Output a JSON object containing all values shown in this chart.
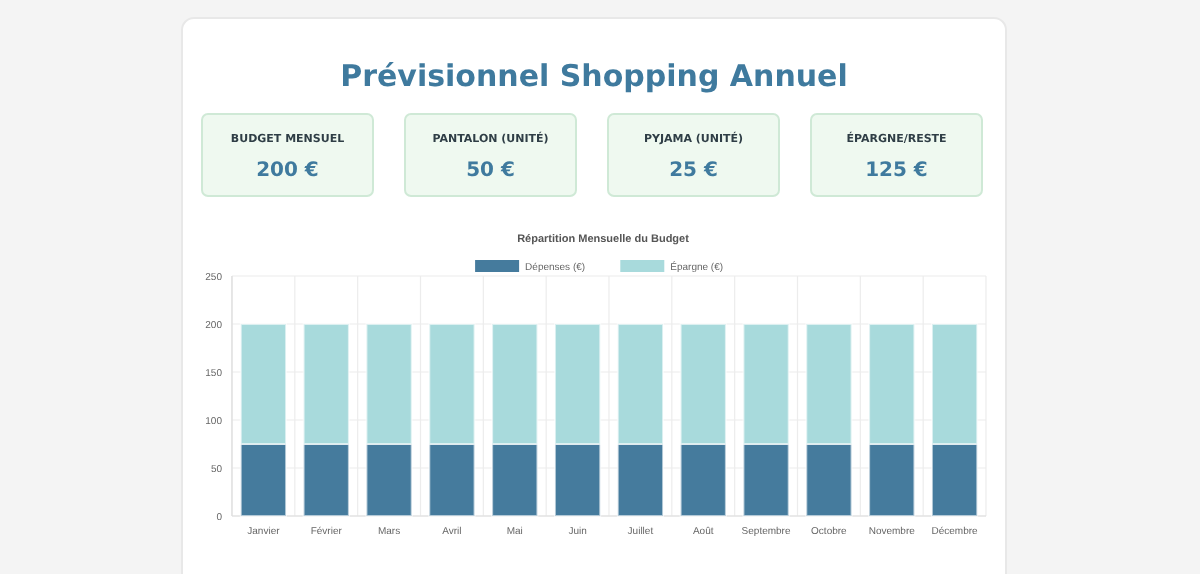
{
  "chart_data": [
    {
      "type": "other",
      "title": "Prévisionnel Shopping Annuel",
      "annotations": [
        "BUDGET MENSUEL",
        "200 €",
        "PANTALON (UNITÉ)",
        "50 €",
        "PYJAMA (UNITÉ)",
        "25 €",
        "ÉPARGNE/RESTE",
        "125 €"
      ]
    },
    {
      "type": "bar",
      "title": "Répartition Mensuelle du Budget",
      "categories": [
        "Janvier",
        "Février",
        "Mars",
        "Avril",
        "Mai",
        "Juin",
        "Juillet",
        "Août",
        "Septembre",
        "Octobre",
        "Novembre",
        "Décembre"
      ],
      "stacked": true,
      "series": [
        {
          "name": "Dépenses (€)",
          "color": "#457b9d",
          "values": [
            75,
            75,
            75,
            75,
            75,
            75,
            75,
            75,
            75,
            75,
            75,
            75
          ]
        },
        {
          "name": "Épargne (€)",
          "color": "#a8dadc",
          "values": [
            125,
            125,
            125,
            125,
            125,
            125,
            125,
            125,
            125,
            125,
            125,
            125
          ]
        }
      ],
      "ylim": [
        0,
        250
      ],
      "yticks": [
        0,
        50,
        100,
        150,
        200,
        250
      ],
      "grid": true,
      "legend": "top"
    }
  ]
}
